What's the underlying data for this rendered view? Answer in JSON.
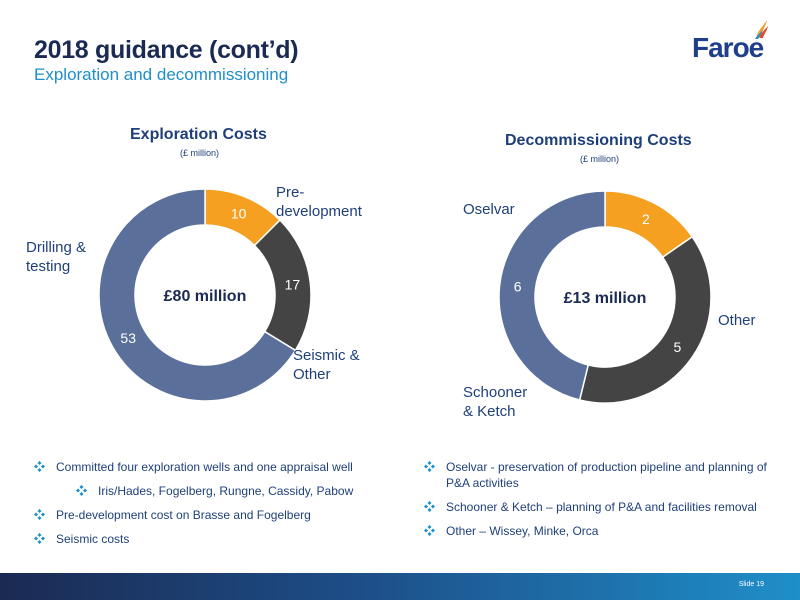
{
  "header": {
    "title": "2018 guidance (cont’d)",
    "subtitle": "Exploration and decommissioning",
    "logo_text": "Faroe"
  },
  "colors": {
    "blue_slice": "#5a6f99",
    "orange_slice": "#f5a021",
    "dark_slice": "#444444",
    "title_navy": "#1b2a52",
    "accent_blue": "#1f8fc9"
  },
  "chart_data": [
    {
      "type": "pie",
      "title": "Exploration Costs",
      "unit": "(£ million)",
      "center_label": "£80 million",
      "slices": [
        {
          "label": "Pre-development",
          "value": 10,
          "color": "#f5a021"
        },
        {
          "label": "Seismic & Other",
          "value": 17,
          "color": "#444444"
        },
        {
          "label": "Drilling & testing",
          "value": 53,
          "color": "#5a6f99"
        }
      ]
    },
    {
      "type": "pie",
      "title": "Decommissioning Costs",
      "unit": "(£ million)",
      "center_label": "£13 million",
      "slices": [
        {
          "label": "Other",
          "value": 2,
          "color": "#f5a021"
        },
        {
          "label": "Schooner & Ketch",
          "value": 5,
          "color": "#444444"
        },
        {
          "label": "Oselvar",
          "value": 6,
          "color": "#5a6f99"
        }
      ]
    }
  ],
  "labels": {
    "exp_predev": [
      "Pre-",
      "development"
    ],
    "exp_seismic": [
      "Seismic &",
      "Other"
    ],
    "exp_drilling": [
      "Drilling &",
      "testing"
    ],
    "dec_oselvar": "Oselvar",
    "dec_other": "Other",
    "dec_schooner": [
      "Schooner",
      "& Ketch"
    ]
  },
  "bullets_left": [
    "Committed four exploration wells and one appraisal well",
    "Iris/Hades, Fogelberg, Rungne, Cassidy, Pabow",
    "Pre-development cost on Brasse and Fogelberg",
    "Seismic costs"
  ],
  "bullets_right": [
    "Oselvar - preservation of production pipeline and planning of P&A activities",
    "Schooner & Ketch – planning of P&A and facilities removal",
    "Other – Wissey, Minke, Orca"
  ],
  "footer": {
    "slide_number": "Slide 19"
  }
}
